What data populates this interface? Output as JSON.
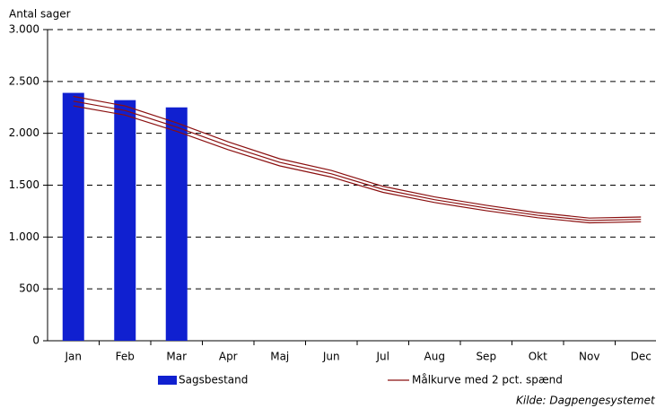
{
  "chart_data": {
    "type": "bar_line",
    "y_axis_label": "Antal sager",
    "categories": [
      "Jan",
      "Feb",
      "Mar",
      "Apr",
      "Maj",
      "Jun",
      "Jul",
      "Aug",
      "Sep",
      "Okt",
      "Nov",
      "Dec"
    ],
    "bars": {
      "name": "Sagsbestand",
      "color": "#1020d0",
      "values": [
        2390,
        2320,
        2250,
        null,
        null,
        null,
        null,
        null,
        null,
        null,
        null,
        null
      ]
    },
    "target": {
      "name": "Målkurve med 2 pct. spænd",
      "color": "#8b1010",
      "values": [
        2310,
        2220,
        2060,
        1880,
        1720,
        1610,
        1460,
        1360,
        1280,
        1210,
        1160,
        1170
      ],
      "upper": [
        2356,
        2264,
        2101,
        1918,
        1754,
        1642,
        1489,
        1387,
        1306,
        1234,
        1183,
        1193
      ],
      "lower": [
        2264,
        2176,
        2019,
        1842,
        1686,
        1578,
        1431,
        1333,
        1254,
        1186,
        1137,
        1147
      ]
    },
    "ylim": [
      0,
      3000
    ],
    "yticks": [
      0,
      500,
      {
        "value": 1000,
        "label": "1.000"
      },
      {
        "value": 1500,
        "label": "1.500"
      },
      {
        "value": 2000,
        "label": "2.000"
      },
      {
        "value": 2500,
        "label": "2.500"
      },
      {
        "value": 3000,
        "label": "3.000"
      }
    ],
    "grid": true,
    "source": "Kilde: Dagpengesystemet"
  }
}
